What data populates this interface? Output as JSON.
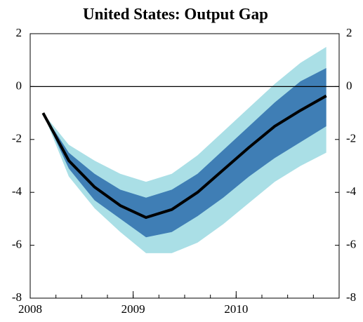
{
  "chart_data": {
    "type": "fan",
    "title": "United States: Output Gap",
    "x": [
      2008.125,
      2008.375,
      2008.625,
      2008.875,
      2009.125,
      2009.375,
      2009.625,
      2009.875,
      2010.125,
      2010.375,
      2010.625,
      2010.875
    ],
    "values": [
      -1.0,
      -2.8,
      -3.8,
      -4.5,
      -4.95,
      -4.65,
      -4.0,
      -3.15,
      -2.3,
      -1.5,
      -0.9,
      -0.35
    ],
    "color": "#000000",
    "bands": [
      {
        "color": "#aadfe6",
        "upper": [
          -1.0,
          -2.2,
          -2.8,
          -3.3,
          -3.6,
          -3.3,
          -2.6,
          -1.7,
          -0.8,
          0.1,
          0.9,
          1.5
        ],
        "lower": [
          -1.0,
          -3.4,
          -4.6,
          -5.5,
          -6.3,
          -6.3,
          -5.9,
          -5.2,
          -4.4,
          -3.6,
          -3.0,
          -2.5
        ]
      },
      {
        "color": "#3f7eb5",
        "upper": [
          -1.0,
          -2.5,
          -3.3,
          -3.9,
          -4.2,
          -3.9,
          -3.3,
          -2.4,
          -1.5,
          -0.6,
          0.2,
          0.7
        ],
        "lower": [
          -1.0,
          -3.1,
          -4.3,
          -5.0,
          -5.7,
          -5.5,
          -4.9,
          -4.2,
          -3.4,
          -2.7,
          -2.1,
          -1.5
        ]
      }
    ],
    "xlim": [
      2008,
      2011
    ],
    "xticks": [
      2008,
      2009,
      2010
    ],
    "ylim": [
      -8,
      2
    ],
    "yticks": [
      2,
      0,
      -2,
      -4,
      -6,
      -8
    ],
    "hline": 0
  }
}
